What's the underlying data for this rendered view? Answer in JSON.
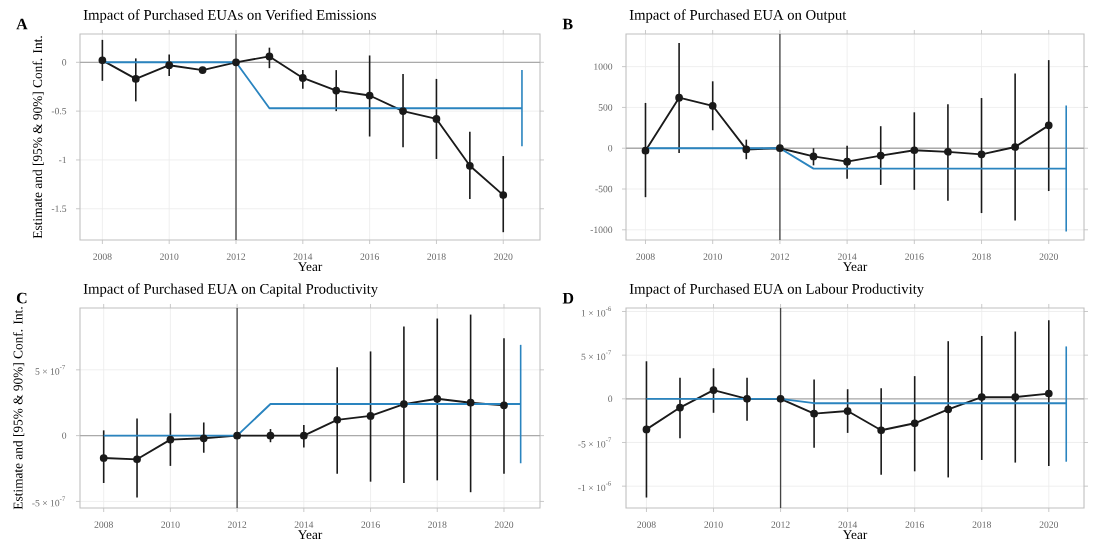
{
  "chart_data": [
    {
      "type": "line",
      "title": "Impact of Purchased EUAs on Verified Emissions",
      "annotations": [
        "A"
      ],
      "xlabel": "Year",
      "ylabel": "Estimate and [95% & 90%] Conf. Int.",
      "x": [
        2008,
        2009,
        2010,
        2011,
        2012,
        2013,
        2014,
        2015,
        2016,
        2017,
        2018,
        2019,
        2020
      ],
      "series": [
        {
          "color": "#1a1a1a",
          "marker": "circle",
          "values": [
            0.02,
            -0.17,
            -0.03,
            -0.08,
            0,
            0.06,
            -0.16,
            -0.29,
            -0.34,
            -0.5,
            -0.58,
            -1.06,
            -1.36
          ],
          "errors": [
            [
              -0.19,
              0.23
            ],
            [
              -0.4,
              0.04
            ],
            [
              -0.14,
              0.08
            ],
            [
              -0.1,
              -0.06
            ],
            null,
            [
              -0.06,
              0.15
            ],
            [
              -0.27,
              -0.08
            ],
            [
              -0.5,
              -0.08
            ],
            [
              -0.76,
              0.07
            ],
            [
              -0.87,
              -0.12
            ],
            [
              -0.99,
              -0.17
            ],
            [
              -1.4,
              -0.71
            ],
            [
              -1.74,
              -0.96
            ]
          ]
        },
        {
          "color": "#2a84bf",
          "marker": "none",
          "x": [
            2008,
            2012,
            2013,
            2020.56
          ],
          "values": [
            0,
            0,
            -0.47,
            -0.47
          ],
          "errors": [
            null,
            null,
            null,
            [
              -0.86,
              -0.08
            ]
          ]
        }
      ],
      "xlim": [
        2007.33,
        2021.1
      ],
      "ylim": [
        -1.82,
        0.29
      ],
      "xticks": [
        2008,
        2010,
        2012,
        2014,
        2016,
        2018,
        2020
      ],
      "yticks": [
        -1.5,
        -1,
        -0.5,
        0
      ],
      "grid": true,
      "ref_lines": [
        {
          "axis": "y",
          "value": 0,
          "color": "#aaaaaa"
        },
        {
          "axis": "x",
          "value": 2012,
          "color": "#444444"
        }
      ]
    },
    {
      "type": "line",
      "title": "Impact of Purchased EUA on Output",
      "annotations": [
        "B"
      ],
      "xlabel": "Year",
      "x": [
        2008,
        2009,
        2010,
        2011,
        2012,
        2013,
        2014,
        2015,
        2016,
        2017,
        2018,
        2019,
        2020
      ],
      "series": [
        {
          "color": "#1a1a1a",
          "marker": "circle",
          "values": [
            -30,
            620,
            520,
            -15,
            0,
            -100,
            -165,
            -90,
            -25,
            -45,
            -75,
            15,
            280
          ],
          "errors": [
            [
              -600,
              555
            ],
            [
              -60,
              1290
            ],
            [
              220,
              820
            ],
            [
              -135,
              105
            ],
            null,
            [
              -210,
              0
            ],
            [
              -375,
              30
            ],
            [
              -450,
              270
            ],
            [
              -510,
              440
            ],
            [
              -645,
              540
            ],
            [
              -795,
              615
            ],
            [
              -885,
              915
            ],
            [
              -525,
              1080
            ]
          ]
        },
        {
          "color": "#2a84bf",
          "marker": "none",
          "x": [
            2008,
            2012,
            2013,
            2020.52
          ],
          "values": [
            0,
            0,
            -250,
            -250
          ],
          "errors": [
            null,
            null,
            null,
            [
              -1020,
              525
            ]
          ]
        }
      ],
      "xlim": [
        2007.42,
        2021.05
      ],
      "ylim": [
        -1125,
        1400
      ],
      "xticks": [
        2008,
        2010,
        2012,
        2014,
        2016,
        2018,
        2020
      ],
      "yticks": [
        -1000,
        -500,
        0,
        500,
        1000
      ],
      "grid": true,
      "ref_lines": [
        {
          "axis": "y",
          "value": 0,
          "color": "#aaaaaa"
        },
        {
          "axis": "x",
          "value": 2012,
          "color": "#444444"
        }
      ]
    },
    {
      "type": "line",
      "title": "Impact of Purchased EUA on Capital Productivity",
      "annotations": [
        "C"
      ],
      "xlabel": "Year",
      "ylabel": "Estimate and [95% & 90%] Conf. Int.",
      "x": [
        2008,
        2009,
        2010,
        2011,
        2012,
        2013,
        2014,
        2015,
        2016,
        2017,
        2018,
        2019,
        2020
      ],
      "series": [
        {
          "color": "#1a1a1a",
          "marker": "circle",
          "values": [
            -1.7e-07,
            -1.8e-07,
            -3e-08,
            -2e-08,
            0,
            0,
            0,
            1.2e-07,
            1.5e-07,
            2.4e-07,
            2.8e-07,
            2.5e-07,
            2.3e-07
          ],
          "errors": [
            [
              -3.6e-07,
              4e-08
            ],
            [
              -4.7e-07,
              1.3e-07
            ],
            [
              -2.3e-07,
              1.7e-07
            ],
            [
              -1.3e-07,
              1e-07
            ],
            null,
            [
              -5e-08,
              5e-08
            ],
            [
              -9e-08,
              8e-08
            ],
            [
              -2.9e-07,
              5.2e-07
            ],
            [
              -3.5e-07,
              6.4e-07
            ],
            [
              -3.6e-07,
              8.3e-07
            ],
            [
              -3.4e-07,
              8.9e-07
            ],
            [
              -4.3e-07,
              9.2e-07
            ],
            [
              -2.9e-07,
              7.4e-07
            ]
          ]
        },
        {
          "color": "#2a84bf",
          "marker": "none",
          "x": [
            2008,
            2012,
            2013,
            2020.5
          ],
          "values": [
            0,
            0,
            2.4e-07,
            2.4e-07
          ],
          "errors": [
            null,
            null,
            null,
            [
              -2.1e-07,
              6.9e-07
            ]
          ]
        }
      ],
      "xlim": [
        2007.29,
        2021.08
      ],
      "ylim": [
        -5.5e-07,
        9.7e-07
      ],
      "xticks": [
        2008,
        2010,
        2012,
        2014,
        2016,
        2018,
        2020
      ],
      "yticks": [
        {
          "value": -5e-07,
          "label": "-5 × 10$^{-7}$"
        },
        {
          "value": 0,
          "label": "0"
        },
        {
          "value": 5e-07,
          "label": "5 × 10$^{-7}$"
        }
      ],
      "grid": true,
      "ref_lines": [
        {
          "axis": "y",
          "value": 0,
          "color": "#aaaaaa"
        },
        {
          "axis": "x",
          "value": 2012,
          "color": "#444444"
        }
      ]
    },
    {
      "type": "line",
      "title": "Impact of Purchased EUA on Labour Productivity",
      "annotations": [
        "D"
      ],
      "xlabel": "Year",
      "x": [
        2008,
        2009,
        2010,
        2011,
        2012,
        2013,
        2014,
        2015,
        2016,
        2017,
        2018,
        2019,
        2020
      ],
      "series": [
        {
          "color": "#1a1a1a",
          "marker": "circle",
          "values": [
            -3.5e-07,
            -1e-07,
            1e-07,
            0,
            0,
            -1.7e-07,
            -1.4e-07,
            -3.6e-07,
            -2.8e-07,
            -1.2e-07,
            2e-08,
            2e-08,
            6e-08
          ],
          "errors": [
            [
              -1.13e-06,
              4.3e-07
            ],
            [
              -4.5e-07,
              2.4e-07
            ],
            [
              -1.6e-07,
              3.5e-07
            ],
            [
              -2.5e-07,
              2.4e-07
            ],
            null,
            [
              -5.6e-07,
              2.2e-07
            ],
            [
              -3.9e-07,
              1.1e-07
            ],
            [
              -8.7e-07,
              1.2e-07
            ],
            [
              -8.3e-07,
              2.6e-07
            ],
            [
              -9e-07,
              6.6e-07
            ],
            [
              -7e-07,
              7.2e-07
            ],
            [
              -7.3e-07,
              7.7e-07
            ],
            [
              -7.7e-07,
              9e-07
            ]
          ]
        },
        {
          "color": "#2a84bf",
          "marker": "none",
          "x": [
            2008,
            2012,
            2013,
            2020.52
          ],
          "values": [
            0,
            0,
            -5e-08,
            -5e-08
          ],
          "errors": [
            null,
            null,
            null,
            [
              -7.2e-07,
              6e-07
            ]
          ]
        }
      ],
      "xlim": [
        2007.39,
        2021.05
      ],
      "ylim": [
        -1.25e-06,
        1.04e-06
      ],
      "xticks": [
        2008,
        2010,
        2012,
        2014,
        2016,
        2018,
        2020
      ],
      "yticks": [
        {
          "value": -1e-06,
          "label": "-1 × 10$^{-6}$"
        },
        {
          "value": -5e-07,
          "label": "-5 × 10$^{-7}$"
        },
        {
          "value": 0,
          "label": "0"
        },
        {
          "value": 5e-07,
          "label": "5 × 10$^{-7}$"
        },
        {
          "value": 1e-06,
          "label": "1 × 10$^{-6}$"
        }
      ],
      "grid": true,
      "ref_lines": [
        {
          "axis": "y",
          "value": 0,
          "color": "#aaaaaa"
        },
        {
          "axis": "x",
          "value": 2012,
          "color": "#444444"
        }
      ]
    }
  ]
}
